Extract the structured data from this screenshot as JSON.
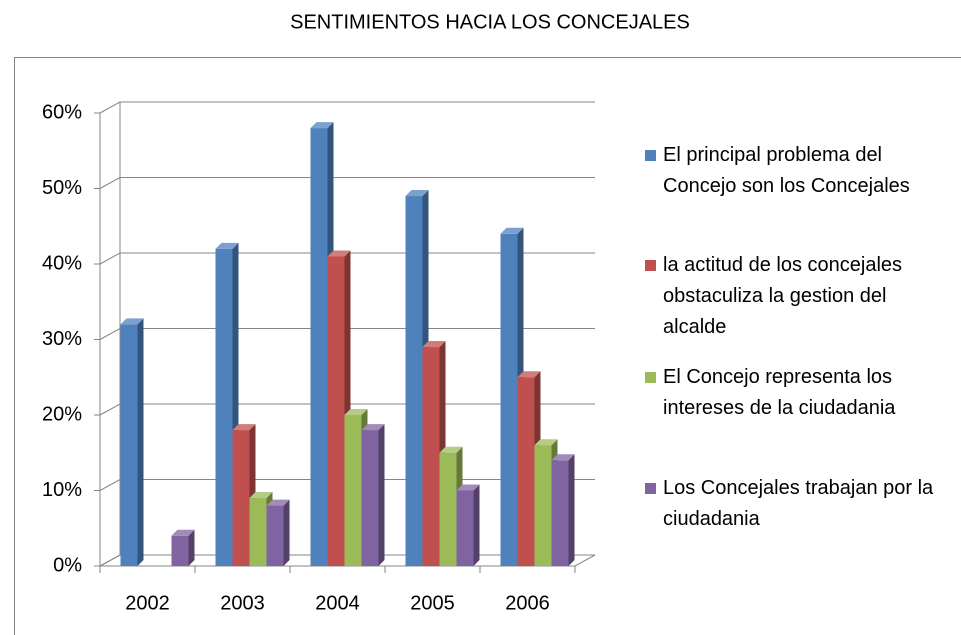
{
  "chart_data": {
    "type": "bar",
    "title": "SENTIMIENTOS HACIA LOS CONCEJALES",
    "categories": [
      "2002",
      "2003",
      "2004",
      "2005",
      "2006"
    ],
    "series": [
      {
        "name": "El principal problema del Concejo son los Concejales",
        "color": "#4f81bd",
        "values": [
          32,
          42,
          58,
          49,
          44
        ]
      },
      {
        "name": "la actitud de los concejales obstaculiza la gestion del alcalde",
        "color": "#c0504d",
        "values": [
          null,
          18,
          41,
          29,
          25
        ]
      },
      {
        "name": "El Concejo representa los intereses de la ciudadania",
        "color": "#9bbb59",
        "values": [
          null,
          9,
          20,
          15,
          16
        ]
      },
      {
        "name": "Los Concejales trabajan por la ciudadania",
        "color": "#8064a2",
        "values": [
          4,
          8,
          18,
          10,
          14
        ]
      }
    ],
    "ylim": [
      0,
      60
    ],
    "yticks": [
      {
        "value": 0,
        "label": "0%"
      },
      {
        "value": 10,
        "label": "10%"
      },
      {
        "value": 20,
        "label": "20%"
      },
      {
        "value": 30,
        "label": "30%"
      },
      {
        "value": 40,
        "label": "40%"
      },
      {
        "value": 50,
        "label": "50%"
      },
      {
        "value": 60,
        "label": "60%"
      }
    ],
    "grid": true,
    "legend": "right"
  }
}
